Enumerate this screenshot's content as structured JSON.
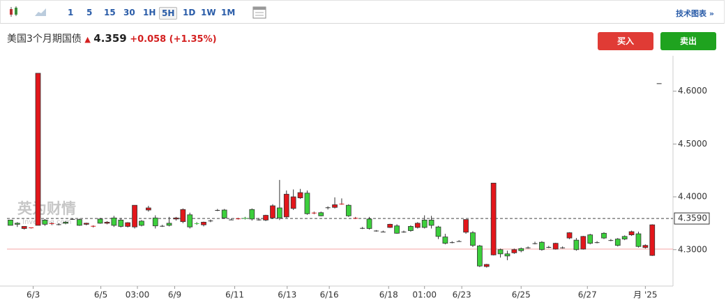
{
  "toolbar": {
    "intervals": [
      "1",
      "5",
      "15",
      "30",
      "1H",
      "5H",
      "1D",
      "1W",
      "1M"
    ],
    "active": "5H",
    "link": "技术图表 »"
  },
  "header": {
    "name": "美国3个月期国债",
    "price": "4.359",
    "change": "+0.058",
    "change_pct": "(+1.35%)",
    "buy": "买入",
    "sell": "卖出"
  },
  "watermark": "英为财情",
  "watermark_sub": "Investing.com",
  "chart_data": {
    "type": "candlestick",
    "xlim": [
      -0.5,
      95.5
    ],
    "xticks": [
      {
        "value": 3.3,
        "label": "6/3"
      },
      {
        "value": 13.1,
        "label": "6/5"
      },
      {
        "value": 18.4,
        "label": "03:00"
      },
      {
        "value": 23.8,
        "label": "6/9"
      },
      {
        "value": 32.5,
        "label": "6/11"
      },
      {
        "value": 40.1,
        "label": "6/13"
      },
      {
        "value": 46.2,
        "label": "6/16"
      },
      {
        "value": 54.8,
        "label": "6/18"
      },
      {
        "value": 60.0,
        "label": "01:00"
      },
      {
        "value": 65.4,
        "label": "6/23"
      },
      {
        "value": 74.0,
        "label": "6/25"
      },
      {
        "value": 83.6,
        "label": "6/27"
      },
      {
        "value": 92.0,
        "label": "月 '25"
      }
    ],
    "ylim": [
      4.231,
      4.667
    ],
    "yticks": [
      {
        "value": 4.3,
        "label": "4.3000"
      },
      {
        "value": 4.4,
        "label": "4.4000"
      },
      {
        "value": 4.5,
        "label": "4.5000"
      },
      {
        "value": 4.6,
        "label": "4.6000"
      }
    ],
    "up_color": "#3ccf3c",
    "down_color": "#e3161b",
    "price_line": {
      "value": 4.359,
      "label": "4.3590"
    },
    "base_line": 4.301,
    "ohlc": [
      [
        4.346,
        4.356,
        4.346,
        4.356
      ],
      [
        4.348,
        4.352,
        4.343,
        4.35
      ],
      [
        4.344,
        4.344,
        4.338,
        4.34
      ],
      [
        4.342,
        4.342,
        4.34,
        4.341
      ],
      [
        4.634,
        4.634,
        4.346,
        4.346
      ],
      [
        4.348,
        4.358,
        4.345,
        4.356
      ],
      [
        4.35,
        4.352,
        4.347,
        4.349
      ],
      [
        4.348,
        4.35,
        4.346,
        4.348
      ],
      [
        4.35,
        4.354,
        4.348,
        4.352
      ],
      [
        4.358,
        4.359,
        4.357,
        4.358
      ],
      [
        4.346,
        4.359,
        4.345,
        4.357
      ],
      [
        4.35,
        4.351,
        4.346,
        4.348
      ],
      [
        4.345,
        4.346,
        4.342,
        4.344
      ],
      [
        4.35,
        4.36,
        4.349,
        4.358
      ],
      [
        4.352,
        4.354,
        4.348,
        4.35
      ],
      [
        4.346,
        4.364,
        4.343,
        4.36
      ],
      [
        4.344,
        4.36,
        4.342,
        4.356
      ],
      [
        4.351,
        4.352,
        4.342,
        4.344
      ],
      [
        4.384,
        4.384,
        4.34,
        4.343
      ],
      [
        4.346,
        4.356,
        4.344,
        4.354
      ],
      [
        4.379,
        4.383,
        4.372,
        4.375
      ],
      [
        4.345,
        4.365,
        4.34,
        4.36
      ],
      [
        4.345,
        4.347,
        4.343,
        4.345
      ],
      [
        4.346,
        4.362,
        4.344,
        4.35
      ],
      [
        4.36,
        4.362,
        4.355,
        4.358
      ],
      [
        4.376,
        4.378,
        4.35,
        4.353
      ],
      [
        4.343,
        4.37,
        4.34,
        4.366
      ],
      [
        4.349,
        4.352,
        4.347,
        4.35
      ],
      [
        4.352,
        4.353,
        4.344,
        4.347
      ],
      [
        4.355,
        4.357,
        4.352,
        4.355
      ],
      [
        4.375,
        4.377,
        4.373,
        4.375
      ],
      [
        4.36,
        4.377,
        4.358,
        4.375
      ],
      [
        4.357,
        4.359,
        4.356,
        4.357
      ],
      [
        4.359,
        4.36,
        4.357,
        4.358
      ],
      [
        4.359,
        4.362,
        4.357,
        4.36
      ],
      [
        4.358,
        4.378,
        4.355,
        4.376
      ],
      [
        4.357,
        4.36,
        4.355,
        4.357
      ],
      [
        4.365,
        4.366,
        4.354,
        4.356
      ],
      [
        4.383,
        4.386,
        4.358,
        4.36
      ],
      [
        4.36,
        4.432,
        4.356,
        4.379
      ],
      [
        4.405,
        4.412,
        4.36,
        4.362
      ],
      [
        4.4,
        4.414,
        4.375,
        4.378
      ],
      [
        4.408,
        4.415,
        4.396,
        4.398
      ],
      [
        4.368,
        4.412,
        4.366,
        4.407
      ],
      [
        4.37,
        4.372,
        4.367,
        4.369
      ],
      [
        4.364,
        4.372,
        4.363,
        4.37
      ],
      [
        4.38,
        4.382,
        4.376,
        4.38
      ],
      [
        4.385,
        4.399,
        4.378,
        4.38
      ],
      [
        4.387,
        4.397,
        4.385,
        4.386
      ],
      [
        4.364,
        4.386,
        4.362,
        4.384
      ],
      [
        4.36,
        4.362,
        4.358,
        4.359
      ],
      [
        4.341,
        4.343,
        4.339,
        4.341
      ],
      [
        4.34,
        4.362,
        4.338,
        4.358
      ],
      [
        4.336,
        4.337,
        4.334,
        4.336
      ],
      [
        4.334,
        4.336,
        4.333,
        4.334
      ],
      [
        4.348,
        4.349,
        4.341,
        4.342
      ],
      [
        4.331,
        4.348,
        4.33,
        4.345
      ],
      [
        4.334,
        4.336,
        4.332,
        4.334
      ],
      [
        4.336,
        4.346,
        4.334,
        4.344
      ],
      [
        4.35,
        4.352,
        4.34,
        4.342
      ],
      [
        4.342,
        4.365,
        4.34,
        4.356
      ],
      [
        4.346,
        4.364,
        4.34,
        4.356
      ],
      [
        4.325,
        4.345,
        4.32,
        4.343
      ],
      [
        4.312,
        4.33,
        4.31,
        4.324
      ],
      [
        4.314,
        4.316,
        4.312,
        4.314
      ],
      [
        4.316,
        4.318,
        4.315,
        4.316
      ],
      [
        4.357,
        4.357,
        4.33,
        4.333
      ],
      [
        4.308,
        4.335,
        4.305,
        4.332
      ],
      [
        4.269,
        4.309,
        4.267,
        4.307
      ],
      [
        4.272,
        4.273,
        4.266,
        4.268
      ],
      [
        4.426,
        4.426,
        4.289,
        4.29
      ],
      [
        4.292,
        4.302,
        4.285,
        4.3
      ],
      [
        4.288,
        4.298,
        4.28,
        4.292
      ],
      [
        4.3,
        4.302,
        4.292,
        4.294
      ],
      [
        4.298,
        4.304,
        4.295,
        4.302
      ],
      [
        4.304,
        4.306,
        4.302,
        4.304
      ],
      [
        4.312,
        4.315,
        4.31,
        4.312
      ],
      [
        4.3,
        4.316,
        4.298,
        4.314
      ],
      [
        4.305,
        4.307,
        4.303,
        4.305
      ],
      [
        4.312,
        4.313,
        4.3,
        4.301
      ],
      [
        4.304,
        4.306,
        4.302,
        4.304
      ],
      [
        4.332,
        4.333,
        4.32,
        4.322
      ],
      [
        4.3,
        4.322,
        4.298,
        4.318
      ],
      [
        4.325,
        4.326,
        4.3,
        4.301
      ],
      [
        4.312,
        4.33,
        4.31,
        4.328
      ],
      [
        4.314,
        4.316,
        4.312,
        4.314
      ],
      [
        4.322,
        4.333,
        4.32,
        4.331
      ],
      [
        4.318,
        4.32,
        4.316,
        4.318
      ],
      [
        4.308,
        4.322,
        4.306,
        4.32
      ],
      [
        4.32,
        4.327,
        4.318,
        4.325
      ],
      [
        4.334,
        4.336,
        4.326,
        4.328
      ],
      [
        4.306,
        4.334,
        4.304,
        4.33
      ],
      [
        4.308,
        4.31,
        4.302,
        4.304
      ],
      [
        4.347,
        4.348,
        4.288,
        4.289
      ],
      [
        4.615,
        4.615,
        4.615,
        4.615
      ]
    ]
  }
}
